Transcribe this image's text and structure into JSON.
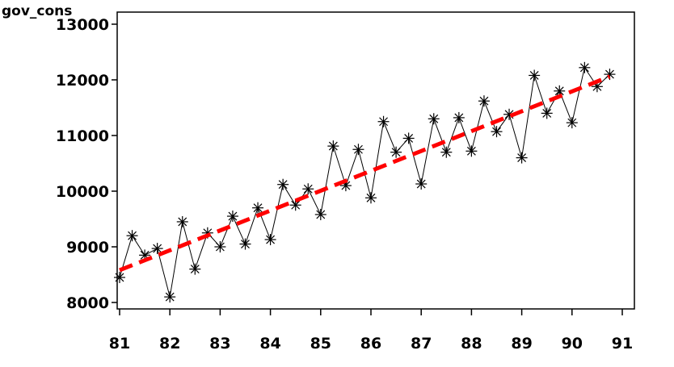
{
  "chart_data": {
    "type": "line",
    "ylabel": "gov_cons",
    "xlabel": "",
    "title": "",
    "xlim": [
      81,
      91
    ],
    "ylim": [
      8000,
      13000
    ],
    "x_ticks": [
      "81",
      "82",
      "83",
      "84",
      "85",
      "86",
      "87",
      "88",
      "89",
      "90",
      "91"
    ],
    "y_ticks": [
      "8000",
      "9000",
      "10000",
      "11000",
      "12000",
      "13000"
    ],
    "grid": false,
    "series": [
      {
        "marker": "asterisk",
        "line": "solid",
        "color": "#000000",
        "x": [
          81.0,
          81.25,
          81.5,
          81.75,
          82.0,
          82.25,
          82.5,
          82.75,
          83.0,
          83.25,
          83.5,
          83.75,
          84.0,
          84.25,
          84.5,
          84.75,
          85.0,
          85.25,
          85.5,
          85.75,
          86.0,
          86.25,
          86.5,
          86.75,
          87.0,
          87.25,
          87.5,
          87.75,
          88.0,
          88.25,
          88.5,
          88.75,
          89.0,
          89.25,
          89.5,
          89.75,
          90.0,
          90.25,
          90.5,
          90.75
        ],
        "values": [
          8450,
          9200,
          8850,
          8970,
          8100,
          9450,
          8600,
          9250,
          9000,
          9550,
          9050,
          9700,
          9130,
          10120,
          9750,
          10040,
          9580,
          10810,
          10100,
          10750,
          9880,
          11250,
          10700,
          10950,
          10130,
          11300,
          10700,
          11320,
          10720,
          11620,
          11070,
          11380,
          10600,
          12080,
          11400,
          11800,
          11230,
          12220,
          11880,
          12100
        ]
      },
      {
        "line": "dashed",
        "color": "#ff0000",
        "x": [
          81.0,
          90.75
        ],
        "values": [
          8580,
          12060
        ]
      }
    ]
  }
}
